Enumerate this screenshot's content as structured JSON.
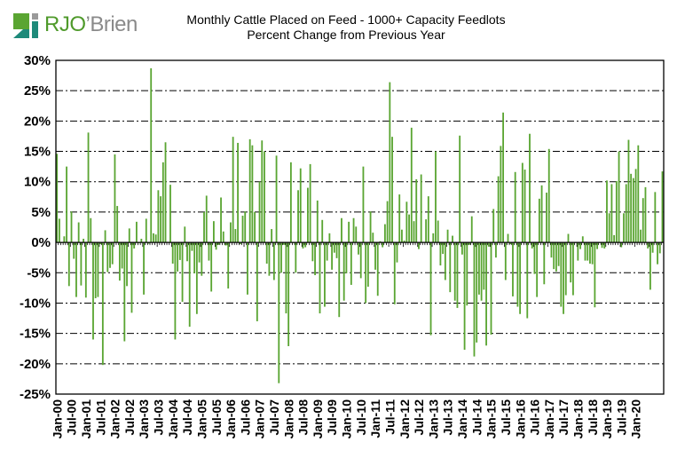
{
  "logo": {
    "brand_prefix": "RJO",
    "brand_suffix": "’Brien",
    "colors": {
      "green": "#5aa532",
      "teal": "#1e8a7a",
      "gray": "#9a9a9a"
    }
  },
  "colors": {
    "bar": "#5aa532",
    "grid": "#000000",
    "axis": "#000000"
  },
  "chart_data": {
    "type": "bar",
    "title": "Monthly Cattle Placed on Feed - 1000+ Capacity Feedlots",
    "subtitle": "Percent Change from Previous Year",
    "xlabel": "",
    "ylabel": "",
    "ylim": [
      -25,
      30
    ],
    "yticks": [
      30,
      25,
      20,
      15,
      10,
      5,
      0,
      -5,
      -10,
      -15,
      -20,
      -25
    ],
    "ytick_labels": [
      "30%",
      "25%",
      "20%",
      "15%",
      "10%",
      "5%",
      "0%",
      "-5%",
      "-10%",
      "-15%",
      "-20%",
      "-25%"
    ],
    "grid": "horizontal dash-dot",
    "xtick_labels": [
      "Jan-00",
      "Jul-00",
      "Jan-01",
      "Jul-01",
      "Jan-02",
      "Jul-02",
      "Jan-03",
      "Jul-03",
      "Jan-04",
      "Jul-04",
      "Jan-05",
      "Jul-05",
      "Jan-06",
      "Jul-06",
      "Jan-07",
      "Jul-07",
      "Jan-08",
      "Jul-08",
      "Jan-09",
      "Jul-09",
      "Jan-10",
      "Jul-10",
      "Jan-11",
      "Jul-11",
      "Jan-12",
      "Jul-12",
      "Jan-13",
      "Jul-13",
      "Jan-14",
      "Jul-14",
      "Jan-15",
      "Jul-15",
      "Jan-16",
      "Jul-16",
      "Jan-17",
      "Jul-17",
      "Jan-18",
      "Jul-18",
      "Jan-19",
      "Jul-19",
      "Jan-20"
    ],
    "start": "Jan-00",
    "end": "Jan-20",
    "series": [
      {
        "name": "Percent change from previous year",
        "values": [
          14.6,
          3.9,
          -0.1,
          1.0,
          12.5,
          -7.2,
          5.1,
          -2.7,
          -9.0,
          3.3,
          -7.1,
          0.6,
          -9.1,
          18.1,
          4.0,
          -16.0,
          -9.2,
          -9.0,
          -0.3,
          -20.2,
          2.0,
          -4.9,
          -4.2,
          -3.6,
          14.5,
          6.0,
          -6.3,
          -4.3,
          -16.3,
          -7.2,
          2.3,
          -11.6,
          -1.0,
          3.4,
          -0.1,
          0.6,
          -8.6,
          3.9,
          -0.2,
          28.7,
          1.5,
          1.3,
          8.6,
          7.6,
          13.2,
          16.5,
          0.1,
          9.5,
          -3.5,
          -16.0,
          -4.8,
          -2.9,
          -9.8,
          2.6,
          -3.1,
          -13.9,
          -1.4,
          -5.1,
          -11.8,
          -3.3,
          -5.5,
          5.0,
          7.7,
          -3.0,
          -8.1,
          3.5,
          -1.2,
          -0.4,
          7.4,
          1.8,
          -0.5,
          -7.6,
          3.3,
          17.4,
          2.2,
          16.4,
          -0.3,
          4.4,
          5.1,
          -8.6,
          17.0,
          16.0,
          5.0,
          -13.0,
          10.0,
          16.8,
          15.0,
          -3.5,
          -5.5,
          2.2,
          -6.2,
          14.3,
          -23.2,
          -5.0,
          -0.4,
          -11.7,
          -17.1,
          13.2,
          -0.1,
          -5.0,
          8.6,
          12.2,
          -1.0,
          -0.8,
          9.0,
          12.9,
          -3.1,
          -5.4,
          6.9,
          -11.7,
          3.7,
          -10.6,
          -3.0,
          1.5,
          -4.5,
          -1.7,
          -2.6,
          -12.3,
          4.0,
          -9.6,
          -5.1,
          3.4,
          -7.0,
          4.0,
          2.6,
          -2.0,
          -5.9,
          12.5,
          -10.0,
          -7.3,
          5.1,
          1.6,
          -4.5,
          -8.8,
          0.2,
          -0.8,
          3.0,
          6.8,
          26.4,
          17.4,
          -10.2,
          -3.3,
          7.9,
          2.1,
          0.3,
          6.7,
          4.6,
          18.9,
          3.5,
          10.4,
          -1.1,
          11.2,
          0.1,
          3.8,
          7.6,
          -15.3,
          1.5,
          15.0,
          3.6,
          -3.8,
          -1.9,
          -6.2,
          2.1,
          -8.2,
          1.1,
          -9.6,
          -10.8,
          17.6,
          -2.0,
          -17.7,
          -10.4,
          -0.4,
          4.3,
          -18.8,
          -16.5,
          -8.6,
          -9.6,
          -7.8,
          -17.0,
          -0.7,
          -15.2,
          5.5,
          -2.5,
          10.9,
          15.9,
          21.4,
          -6.2,
          1.4,
          -0.3,
          -8.9,
          11.6,
          -10.6,
          -11.8,
          13.1,
          12.0,
          -12.5,
          17.9,
          -1.0,
          -5.2,
          -9.0,
          7.2,
          9.4,
          -6.9,
          8.2,
          15.4,
          -2.5,
          -4.4,
          -4.8,
          -3.9,
          -10.6,
          -11.8,
          -8.7,
          1.4,
          -6.6,
          -8.7,
          -0.1,
          -3.0,
          -1.1,
          1.0,
          -3.0,
          -3.0,
          -3.5,
          -3.6,
          -10.7,
          -1.1,
          -0.1,
          -0.9,
          -1.0,
          10.2,
          4.8,
          9.6,
          1.2,
          10.1,
          15.0,
          -0.8,
          4.8,
          9.6,
          16.9,
          11.3,
          10.6,
          12.1,
          16.0,
          2.1,
          7.3,
          9.1,
          -1.0,
          -7.8,
          -1.7,
          8.3,
          -3.6,
          -1.8,
          11.7
        ]
      }
    ]
  }
}
